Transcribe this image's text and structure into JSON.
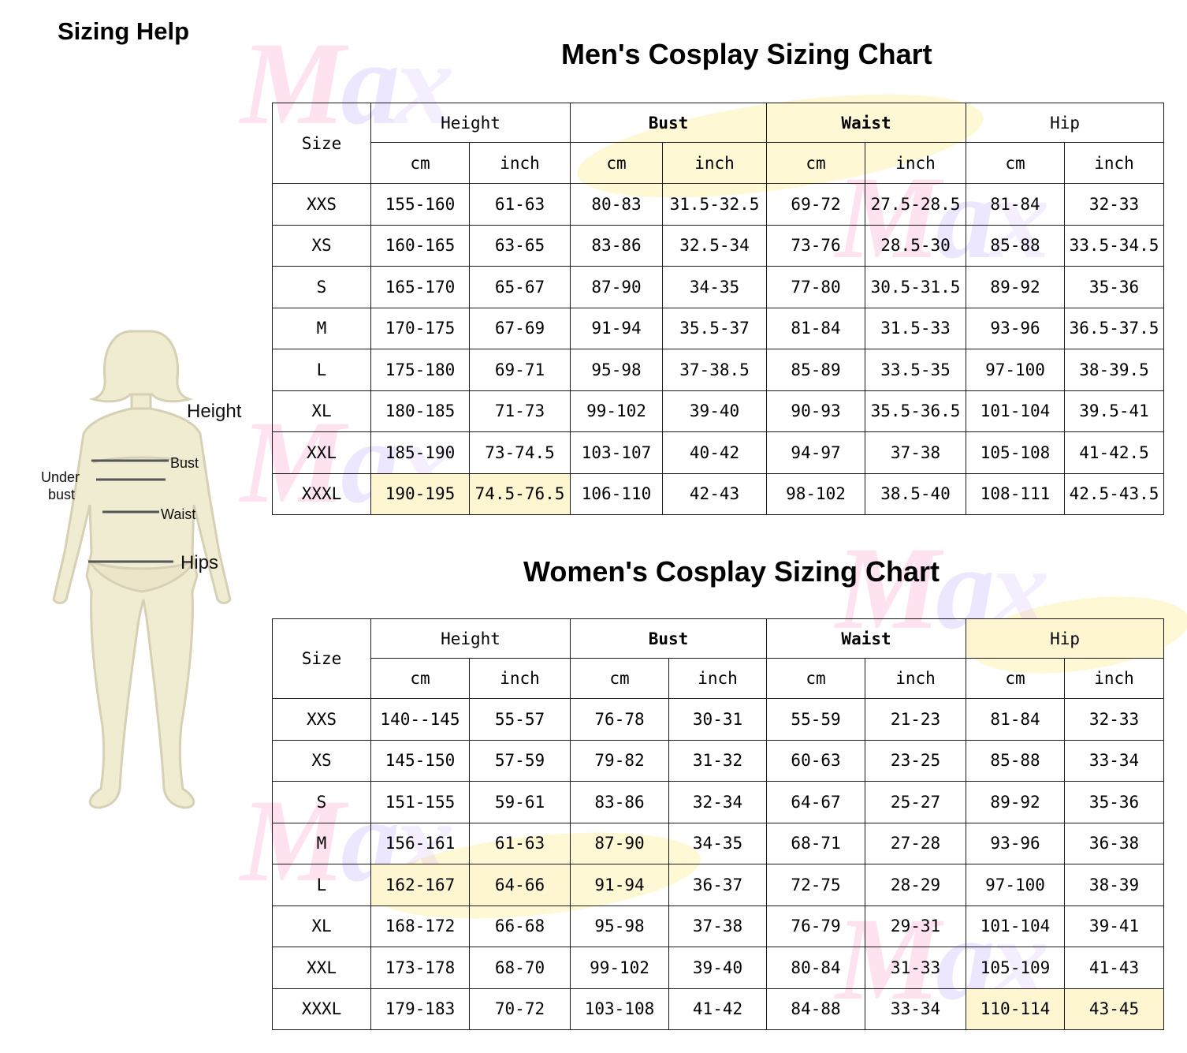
{
  "heading": "Sizing Help",
  "watermark": "Max",
  "colors": {
    "figure_fill": "#f0ecd2",
    "figure_stroke": "#d6d0b4",
    "watermark_pink": "#ff4fa0",
    "watermark_purple": "#8c6cff",
    "highlight": "#fdf6d0"
  },
  "figure_labels": {
    "height": "Height",
    "bust": "Bust",
    "under_bust_1": "Under",
    "under_bust_2": "bust",
    "waist": "Waist",
    "hips": "Hips"
  },
  "men": {
    "title": "Men's Cosplay Sizing Chart",
    "size_header": "Size",
    "groups": [
      "Height",
      "Bust",
      "Waist",
      "Hip"
    ],
    "units": [
      "cm",
      "inch",
      "cm",
      "inch",
      "cm",
      "inch",
      "cm",
      "inch"
    ],
    "rows": [
      [
        "XXS",
        "155-160",
        "61-63",
        "80-83",
        "31.5-32.5",
        "69-72",
        "27.5-28.5",
        "81-84",
        "32-33"
      ],
      [
        "XS",
        "160-165",
        "63-65",
        "83-86",
        "32.5-34",
        "73-76",
        "28.5-30",
        "85-88",
        "33.5-34.5"
      ],
      [
        "S",
        "165-170",
        "65-67",
        "87-90",
        "34-35",
        "77-80",
        "30.5-31.5",
        "89-92",
        "35-36"
      ],
      [
        "M",
        "170-175",
        "67-69",
        "91-94",
        "35.5-37",
        "81-84",
        "31.5-33",
        "93-96",
        "36.5-37.5"
      ],
      [
        "L",
        "175-180",
        "69-71",
        "95-98",
        "37-38.5",
        "85-89",
        "33.5-35",
        "97-100",
        "38-39.5"
      ],
      [
        "XL",
        "180-185",
        "71-73",
        "99-102",
        "39-40",
        "90-93",
        "35.5-36.5",
        "101-104",
        "39.5-41"
      ],
      [
        "XXL",
        "185-190",
        "73-74.5",
        "103-107",
        "40-42",
        "94-97",
        "37-38",
        "105-108",
        "41-42.5"
      ],
      [
        "XXXL",
        "190-195",
        "74.5-76.5",
        "106-110",
        "42-43",
        "98-102",
        "38.5-40",
        "108-111",
        "42.5-43.5"
      ]
    ]
  },
  "women": {
    "title": "Women's Cosplay Sizing Chart",
    "size_header": "Size",
    "groups": [
      "Height",
      "Bust",
      "Waist",
      "Hip"
    ],
    "units": [
      "cm",
      "inch",
      "cm",
      "inch",
      "cm",
      "inch",
      "cm",
      "inch"
    ],
    "rows": [
      [
        "XXS",
        "140--145",
        "55-57",
        "76-78",
        "30-31",
        "55-59",
        "21-23",
        "81-84",
        "32-33"
      ],
      [
        "XS",
        "145-150",
        "57-59",
        "79-82",
        "31-32",
        "60-63",
        "23-25",
        "85-88",
        "33-34"
      ],
      [
        "S",
        "151-155",
        "59-61",
        "83-86",
        "32-34",
        "64-67",
        "25-27",
        "89-92",
        "35-36"
      ],
      [
        "M",
        "156-161",
        "61-63",
        "87-90",
        "34-35",
        "68-71",
        "27-28",
        "93-96",
        "36-38"
      ],
      [
        "L",
        "162-167",
        "64-66",
        "91-94",
        "36-37",
        "72-75",
        "28-29",
        "97-100",
        "38-39"
      ],
      [
        "XL",
        "168-172",
        "66-68",
        "95-98",
        "37-38",
        "76-79",
        "29-31",
        "101-104",
        "39-41"
      ],
      [
        "XXL",
        "173-178",
        "68-70",
        "99-102",
        "39-40",
        "80-84",
        "31-33",
        "105-109",
        "41-43"
      ],
      [
        "XXXL",
        "179-183",
        "70-72",
        "103-108",
        "41-42",
        "84-88",
        "33-34",
        "110-114",
        "43-45"
      ]
    ]
  }
}
